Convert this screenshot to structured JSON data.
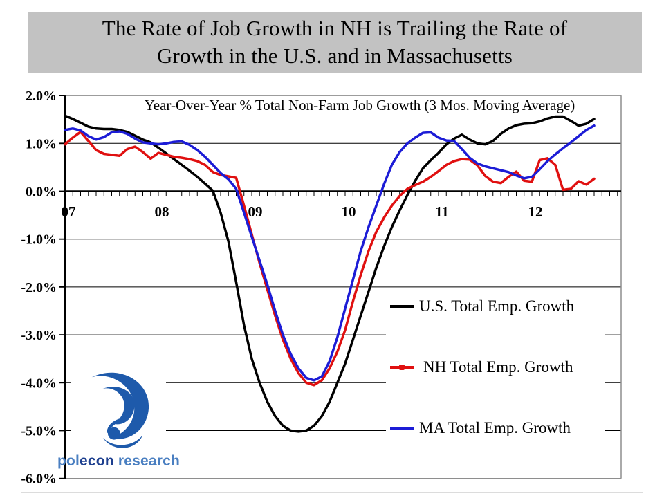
{
  "slide": {
    "title": "The Rate of Job Growth in NH is Trailing the Rate of\nGrowth in the U.S. and in Massachusetts"
  },
  "chart_data": {
    "type": "line",
    "title": "Year-Over-Year % Total Non-Farm Job Growth (3 Mos. Moving Average)",
    "x_start": "Jan 2007",
    "x_end": "Sep 2012",
    "x_unit": "month",
    "ylim": [
      -6,
      2
    ],
    "grid": "horizontal",
    "legend_position": "middle-right",
    "x_axis": {
      "year_labels": [
        "07",
        "08",
        "09",
        "10",
        "11",
        "12"
      ]
    },
    "y_axis": {
      "ticks": [
        {
          "v": 2,
          "label": "2.0%"
        },
        {
          "v": 1,
          "label": "1.0%"
        },
        {
          "v": 0,
          "label": "0.0%"
        },
        {
          "v": -1,
          "label": "-1.0%"
        },
        {
          "v": -2,
          "label": "-2.0%"
        },
        {
          "v": -3,
          "label": "-3.0%"
        },
        {
          "v": -4,
          "label": "-4.0%"
        },
        {
          "v": -5,
          "label": "-5.0%"
        },
        {
          "v": -6,
          "label": "-6.0%"
        }
      ]
    },
    "series": [
      {
        "name": "U.S. Total Emp. Growth",
        "color": "#000000",
        "values": [
          1.58,
          1.51,
          1.43,
          1.35,
          1.31,
          1.3,
          1.3,
          1.28,
          1.24,
          1.16,
          1.08,
          1.02,
          0.91,
          0.79,
          0.67,
          0.55,
          0.43,
          0.3,
          0.16,
          0.01,
          -0.45,
          -1.05,
          -1.9,
          -2.8,
          -3.5,
          -4.0,
          -4.4,
          -4.7,
          -4.9,
          -5.0,
          -5.02,
          -5.0,
          -4.9,
          -4.7,
          -4.4,
          -4.0,
          -3.6,
          -3.1,
          -2.6,
          -2.1,
          -1.6,
          -1.15,
          -0.75,
          -0.4,
          -0.08,
          0.22,
          0.48,
          0.65,
          0.8,
          0.98,
          1.1,
          1.18,
          1.08,
          1.0,
          0.98,
          1.05,
          1.2,
          1.31,
          1.38,
          1.41,
          1.42,
          1.46,
          1.52,
          1.56,
          1.56,
          1.47,
          1.37,
          1.41,
          1.51
        ]
      },
      {
        "name": "NH Total Emp. Growth",
        "color": "#e01010",
        "values": [
          0.98,
          1.12,
          1.24,
          1.05,
          0.86,
          0.78,
          0.76,
          0.74,
          0.88,
          0.93,
          0.82,
          0.68,
          0.8,
          0.76,
          0.72,
          0.7,
          0.67,
          0.63,
          0.55,
          0.4,
          0.34,
          0.31,
          0.28,
          -0.3,
          -0.9,
          -1.5,
          -2.05,
          -2.6,
          -3.1,
          -3.5,
          -3.8,
          -4.0,
          -4.05,
          -3.95,
          -3.7,
          -3.35,
          -2.9,
          -2.3,
          -1.75,
          -1.25,
          -0.85,
          -0.55,
          -0.3,
          -0.1,
          0.05,
          0.13,
          0.2,
          0.3,
          0.42,
          0.55,
          0.63,
          0.67,
          0.66,
          0.54,
          0.32,
          0.2,
          0.17,
          0.3,
          0.41,
          0.22,
          0.2,
          0.65,
          0.69,
          0.55,
          0.03,
          0.05,
          0.21,
          0.14,
          0.26
        ]
      },
      {
        "name": "MA Total Emp. Growth",
        "color": "#1c1cd6",
        "values": [
          1.28,
          1.31,
          1.27,
          1.15,
          1.08,
          1.13,
          1.23,
          1.25,
          1.2,
          1.1,
          1.02,
          1.0,
          0.98,
          1.0,
          1.03,
          1.04,
          0.97,
          0.86,
          0.72,
          0.55,
          0.38,
          0.25,
          0.05,
          -0.45,
          -0.95,
          -1.45,
          -1.95,
          -2.5,
          -3.0,
          -3.4,
          -3.7,
          -3.9,
          -3.95,
          -3.87,
          -3.55,
          -3.05,
          -2.45,
          -1.85,
          -1.25,
          -0.75,
          -0.3,
          0.15,
          0.55,
          0.82,
          1.0,
          1.12,
          1.22,
          1.23,
          1.12,
          1.06,
          1.05,
          0.88,
          0.7,
          0.58,
          0.52,
          0.48,
          0.44,
          0.4,
          0.33,
          0.27,
          0.3,
          0.46,
          0.63,
          0.77,
          0.9,
          1.02,
          1.15,
          1.28,
          1.37
        ]
      }
    ]
  },
  "logo": {
    "word1": "pol",
    "word2": "econ",
    "word3": " research",
    "mark_color": "#1e5aab"
  }
}
